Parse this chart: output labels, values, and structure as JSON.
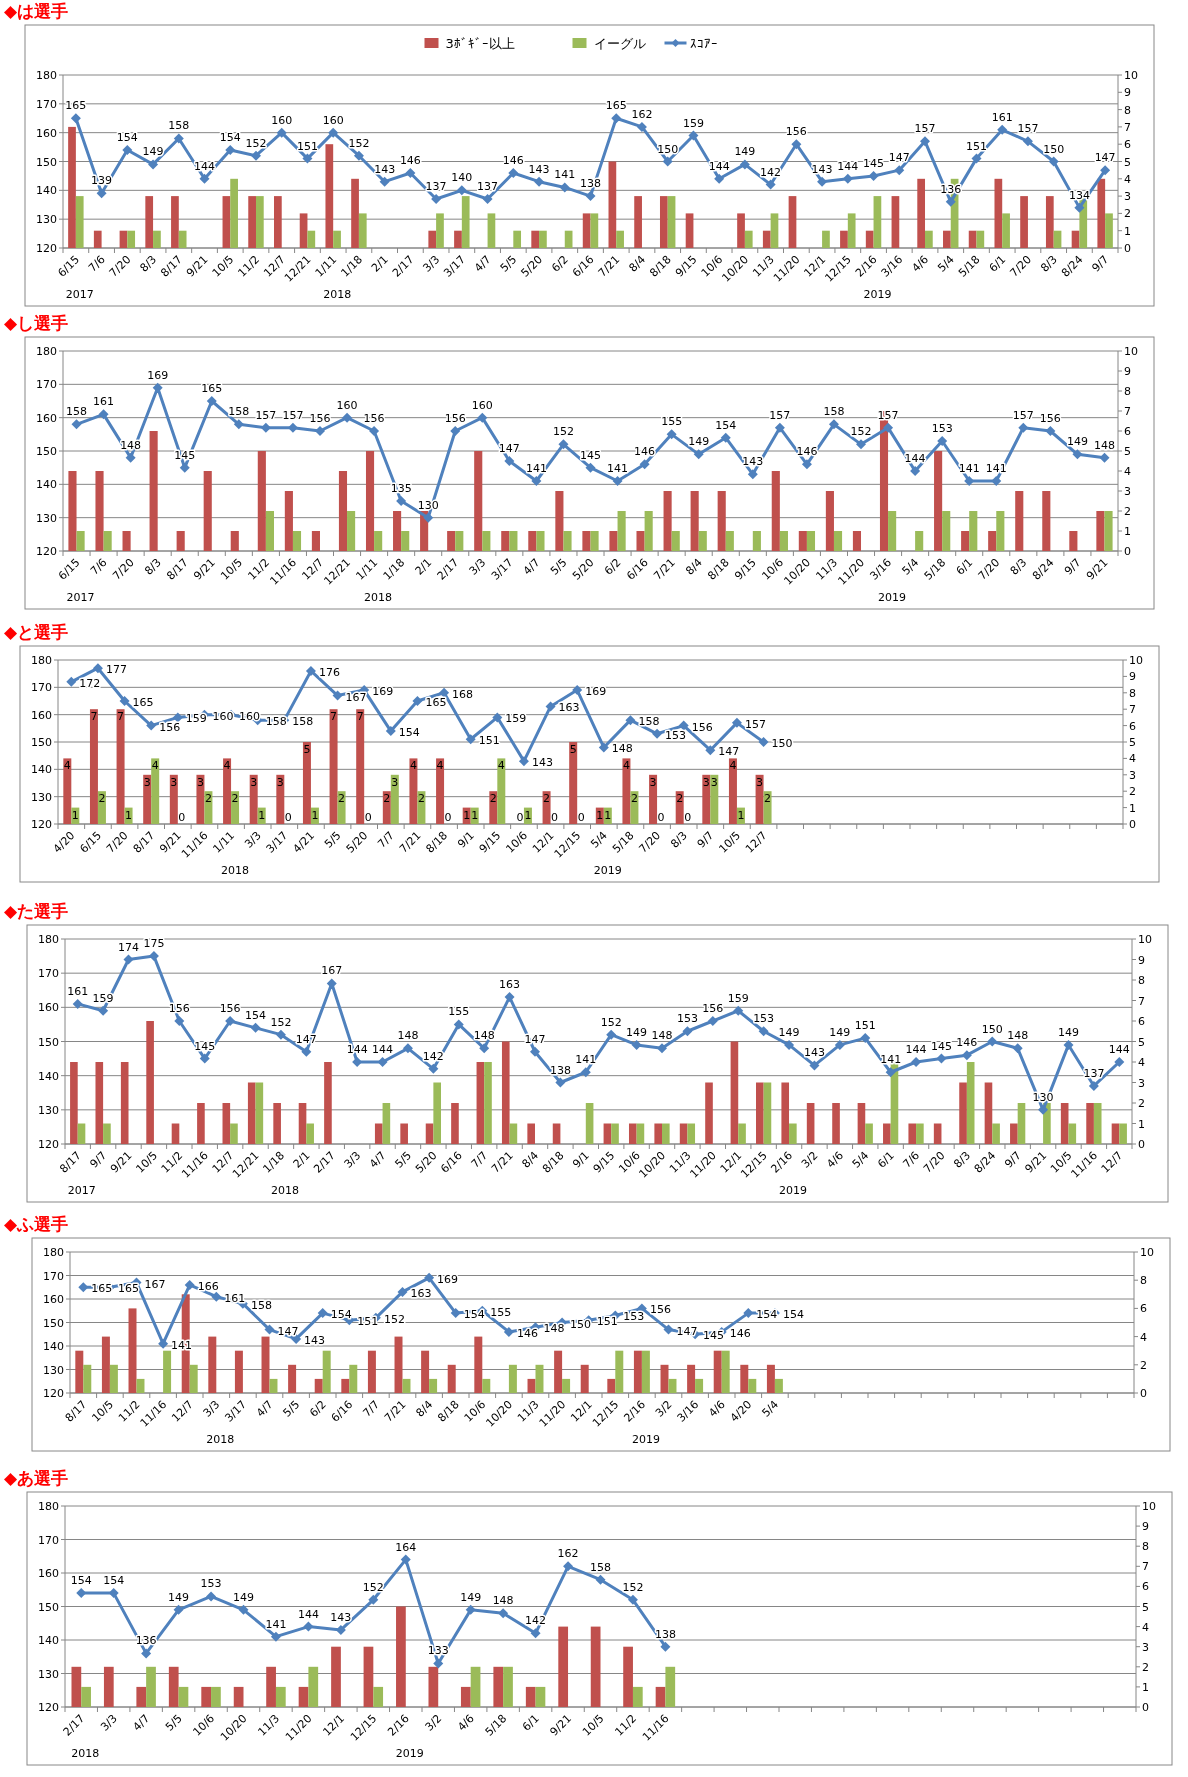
{
  "chart_data": [
    {
      "type": "bar",
      "title": "◆は選手",
      "legend": "top",
      "grid": "y",
      "ylim": [
        120,
        180
      ],
      "yticks": [
        120,
        130,
        140,
        150,
        160,
        170,
        180
      ],
      "y2lim": [
        0,
        10
      ],
      "y2ticks": [
        0,
        1,
        2,
        3,
        4,
        5,
        6,
        7,
        8,
        9,
        10
      ],
      "categories": [
        "6/15",
        "7/6",
        "7/20",
        "8/3",
        "8/17",
        "9/21",
        "10/5",
        "11/2",
        "12/7",
        "12/21",
        "1/11",
        "1/18",
        "2/1",
        "2/17",
        "3/3",
        "3/17",
        "4/7",
        "5/5",
        "5/20",
        "6/2",
        "6/16",
        "7/21",
        "8/4",
        "8/18",
        "9/15",
        "10/6",
        "10/20",
        "11/3",
        "11/20",
        "12/1",
        "12/15",
        "2/16",
        "3/16",
        "4/6",
        "5/4",
        "5/18",
        "6/1",
        "7/20",
        "8/3",
        "8/24",
        "9/7"
      ],
      "annotations": [
        "2017",
        "2018",
        "2019"
      ],
      "series": [
        {
          "name": "3ﾎﾞｷﾞｰ以上",
          "color": "#c0504d",
          "axis": "y2",
          "values": [
            7,
            1,
            1,
            3,
            3,
            null,
            3,
            3,
            3,
            2,
            6,
            4,
            null,
            null,
            1,
            1,
            null,
            null,
            1,
            null,
            2,
            5,
            3,
            3,
            2,
            null,
            2,
            1,
            3,
            null,
            1,
            1,
            3,
            4,
            1,
            1,
            4,
            3,
            3,
            1,
            4
          ]
        },
        {
          "name": "イーグル",
          "color": "#9bbb59",
          "axis": "y2",
          "values": [
            3,
            null,
            1,
            1,
            1,
            null,
            4,
            3,
            null,
            1,
            1,
            2,
            null,
            null,
            2,
            3,
            2,
            1,
            1,
            1,
            2,
            1,
            null,
            3,
            null,
            null,
            1,
            2,
            null,
            1,
            2,
            3,
            null,
            1,
            4,
            1,
            2,
            null,
            1,
            3,
            2
          ]
        },
        {
          "name": "ｽｺｱｰ",
          "type": "line",
          "color": "#4f81bd",
          "marker": "diamond",
          "values": [
            165,
            139,
            154,
            149,
            158,
            144,
            154,
            152,
            160,
            151,
            160,
            152,
            143,
            146,
            137,
            140,
            137,
            146,
            143,
            141,
            138,
            165,
            162,
            150,
            159,
            144,
            149,
            142,
            156,
            143,
            144,
            145,
            147,
            157,
            136,
            151,
            161,
            157,
            150,
            134,
            147
          ],
          "value_labels": [
            "165",
            "139",
            "154",
            "149",
            "158",
            "144",
            "154",
            "152",
            "160",
            "151",
            "160",
            "152",
            "143",
            "146",
            "137",
            "140",
            "137",
            "146",
            "143",
            "141",
            "138",
            "165",
            "162",
            "150",
            "159",
            "144",
            "149",
            "142",
            "156",
            "143",
            "144",
            "145",
            "147",
            "157",
            "136",
            "151",
            "161",
            "157",
            "150",
            "134",
            "147"
          ]
        }
      ]
    },
    {
      "type": "bar",
      "title": "◆し選手",
      "grid": "y",
      "ylim": [
        120,
        180
      ],
      "yticks": [
        120,
        130,
        140,
        150,
        160,
        170,
        180
      ],
      "y2lim": [
        0,
        10
      ],
      "y2ticks": [
        0,
        1,
        2,
        3,
        4,
        5,
        6,
        7,
        8,
        9,
        10
      ],
      "categories": [
        "6/15",
        "7/6",
        "7/20",
        "8/3",
        "8/17",
        "9/21",
        "10/5",
        "11/2",
        "11/16",
        "12/7",
        "12/21",
        "1/11",
        "1/18",
        "2/1",
        "2/17",
        "3/3",
        "3/17",
        "4/7",
        "5/5",
        "5/20",
        "6/2",
        "6/16",
        "7/21",
        "8/4",
        "8/18",
        "9/15",
        "10/6",
        "10/20",
        "11/3",
        "11/20",
        "3/16",
        "5/4",
        "5/18",
        "6/1",
        "7/20",
        "8/3",
        "8/24",
        "9/7",
        "9/21"
      ],
      "annotations": [
        "2017",
        "2018",
        "2019"
      ],
      "series": [
        {
          "color": "#c0504d",
          "axis": "y2",
          "values": [
            4,
            4,
            1,
            6,
            1,
            4,
            1,
            5,
            3,
            1,
            4,
            5,
            2,
            2,
            1,
            5,
            1,
            1,
            3,
            1,
            1,
            1,
            3,
            3,
            3,
            null,
            4,
            1,
            3,
            1,
            7,
            null,
            5,
            1,
            1,
            3,
            3,
            1,
            2
          ]
        },
        {
          "color": "#9bbb59",
          "axis": "y2",
          "values": [
            1,
            1,
            null,
            null,
            null,
            null,
            null,
            2,
            1,
            null,
            2,
            1,
            1,
            null,
            1,
            1,
            1,
            1,
            1,
            1,
            2,
            2,
            1,
            1,
            1,
            1,
            1,
            1,
            1,
            null,
            2,
            1,
            2,
            2,
            2,
            null,
            null,
            null,
            2
          ]
        },
        {
          "type": "line",
          "color": "#4f81bd",
          "marker": "diamond",
          "values": [
            158,
            161,
            148,
            169,
            145,
            165,
            158,
            157,
            157,
            156,
            160,
            156,
            135,
            130,
            156,
            160,
            147,
            141,
            152,
            145,
            141,
            146,
            155,
            149,
            154,
            143,
            157,
            146,
            158,
            152,
            157,
            144,
            153,
            141,
            141,
            157,
            156,
            149,
            148
          ],
          "value_labels": [
            "158",
            "161",
            "148",
            "169",
            "145",
            "165",
            "158",
            "157",
            "157",
            "156",
            "160",
            "156",
            "135",
            "130",
            "156",
            "160",
            "147",
            "141",
            "152",
            "145",
            "141",
            "146",
            "155",
            "149",
            "154",
            "143",
            "157",
            "146",
            "158",
            "152",
            "157",
            "144",
            "153",
            "141",
            "141",
            "157",
            "156",
            "149",
            "148"
          ]
        }
      ]
    },
    {
      "type": "bar",
      "title": "◆と選手",
      "grid": "y",
      "ylim": [
        120,
        180
      ],
      "yticks": [
        120,
        130,
        140,
        150,
        160,
        170,
        180
      ],
      "y2lim": [
        0,
        10
      ],
      "y2ticks": [
        0,
        1,
        2,
        3,
        4,
        5,
        6,
        7,
        8,
        9,
        10
      ],
      "categories": [
        "4/20",
        "6/15",
        "7/20",
        "8/17",
        "9/21",
        "11/16",
        "1/11",
        "3/3",
        "3/17",
        "4/21",
        "5/5",
        "5/20",
        "7/7",
        "7/21",
        "8/18",
        "9/1",
        "9/15",
        "10/6",
        "12/1",
        "12/15",
        "5/4",
        "5/18",
        "7/20",
        "8/3",
        "9/7",
        "10/5",
        "12/7",
        null,
        null,
        null,
        null,
        null,
        null,
        null,
        null,
        null,
        null,
        null,
        null,
        null
      ],
      "annotations": [
        "2018",
        "2019"
      ],
      "series": [
        {
          "color": "#c0504d",
          "axis": "y2",
          "values": [
            4,
            7,
            7,
            3,
            3,
            3,
            4,
            3,
            3,
            5,
            7,
            7,
            2,
            4,
            4,
            1,
            2,
            0,
            2,
            5,
            1,
            4,
            3,
            2,
            3,
            4,
            3,
            null,
            null,
            null,
            null,
            null,
            null,
            null,
            null,
            null,
            null,
            null,
            null,
            null
          ],
          "value_labels": [
            "4",
            "7",
            "7",
            "3",
            "3",
            "3",
            "4",
            "3",
            "3",
            "5",
            "7",
            "7",
            "2",
            "4",
            "4",
            "1",
            "2",
            "0",
            "2",
            "5",
            "1",
            "4",
            "3",
            "2",
            "3",
            "4",
            "3",
            null,
            null,
            null,
            null,
            null,
            null,
            null,
            null,
            null,
            null,
            null,
            null,
            null
          ]
        },
        {
          "color": "#9bbb59",
          "axis": "y2",
          "values": [
            1,
            2,
            1,
            4,
            0,
            2,
            2,
            1,
            0,
            1,
            2,
            0,
            3,
            2,
            0,
            1,
            4,
            1,
            0,
            0,
            1,
            2,
            0,
            0,
            3,
            1,
            2,
            null,
            null,
            null,
            null,
            null,
            null,
            null,
            null,
            null,
            null,
            null,
            null,
            null
          ],
          "value_labels": [
            "1",
            "2",
            "1",
            "4",
            "0",
            "2",
            "2",
            "1",
            "0",
            "1",
            "2",
            "0",
            "3",
            "2",
            "0",
            "1",
            "4",
            "1",
            "0",
            "0",
            "1",
            "2",
            "0",
            "0",
            "3",
            "1",
            "2",
            null,
            null,
            null,
            null,
            null,
            null,
            null,
            null,
            null,
            null,
            null,
            null,
            null
          ]
        },
        {
          "type": "line",
          "color": "#4f81bd",
          "marker": "diamond",
          "values": [
            172,
            177,
            165,
            156,
            159,
            160,
            160,
            158,
            158,
            176,
            167,
            169,
            154,
            165,
            168,
            151,
            159,
            143,
            163,
            169,
            148,
            158,
            153,
            156,
            147,
            157,
            150,
            null,
            null,
            null,
            null,
            null,
            null,
            null,
            null,
            null,
            null,
            null,
            null,
            null
          ],
          "value_labels": [
            "172",
            "177",
            "165",
            "156",
            "159",
            "160",
            "160",
            "158",
            "158",
            "176",
            "167",
            "169",
            "154",
            "165",
            "168",
            "151",
            "159",
            "143",
            "163",
            "169",
            "148",
            "158",
            "153",
            "156",
            "147",
            "157",
            "150",
            null,
            null,
            null,
            null,
            null,
            null,
            null,
            null,
            null,
            null,
            null,
            null,
            null
          ]
        }
      ]
    },
    {
      "type": "bar",
      "title": "◆た選手",
      "grid": "y",
      "ylim": [
        120,
        180
      ],
      "yticks": [
        120,
        130,
        140,
        150,
        160,
        170,
        180
      ],
      "y2lim": [
        0,
        10
      ],
      "y2ticks": [
        0,
        1,
        2,
        3,
        4,
        5,
        6,
        7,
        8,
        9,
        10
      ],
      "categories": [
        "8/17",
        "9/7",
        "9/21",
        "10/5",
        "11/2",
        "11/16",
        "12/7",
        "12/21",
        "1/18",
        "2/1",
        "2/17",
        "3/3",
        "4/7",
        "5/5",
        "5/20",
        "6/16",
        "7/7",
        "7/21",
        "8/4",
        "8/18",
        "9/1",
        "9/15",
        "10/6",
        "10/20",
        "11/3",
        "11/20",
        "12/1",
        "12/15",
        "2/16",
        "3/2",
        "4/6",
        "5/4",
        "6/1",
        "7/6",
        "7/20",
        "8/3",
        "8/24",
        "9/7",
        "9/21",
        "10/5",
        "11/16",
        "12/7"
      ],
      "annotations": [
        "2017",
        "2018",
        "2019"
      ],
      "series": [
        {
          "color": "#c0504d",
          "axis": "y2",
          "values": [
            4,
            4,
            4,
            6,
            1,
            2,
            2,
            3,
            2,
            2,
            4,
            null,
            1,
            1,
            1,
            2,
            4,
            5,
            1,
            1,
            null,
            1,
            1,
            1,
            1,
            3,
            5,
            3,
            3,
            2,
            2,
            2,
            1,
            1,
            1,
            3,
            3,
            1,
            null,
            2,
            2,
            1
          ]
        },
        {
          "color": "#9bbb59",
          "axis": "y2",
          "values": [
            1,
            1,
            null,
            null,
            null,
            null,
            1,
            3,
            null,
            1,
            null,
            null,
            2,
            null,
            3,
            null,
            4,
            1,
            null,
            null,
            2,
            1,
            1,
            1,
            1,
            null,
            1,
            3,
            1,
            null,
            null,
            1,
            4,
            1,
            null,
            4,
            1,
            2,
            2,
            1,
            2,
            1
          ]
        },
        {
          "type": "line",
          "color": "#4f81bd",
          "marker": "diamond",
          "values": [
            161,
            159,
            174,
            175,
            156,
            145,
            156,
            154,
            152,
            147,
            167,
            144,
            144,
            148,
            142,
            155,
            148,
            163,
            147,
            138,
            141,
            152,
            149,
            148,
            153,
            156,
            159,
            153,
            149,
            143,
            149,
            151,
            141,
            144,
            145,
            146,
            150,
            148,
            130,
            149,
            137,
            144
          ],
          "value_labels": [
            "161",
            "159",
            "174",
            "175",
            "156",
            "145",
            "156",
            "154",
            "152",
            "147",
            "167",
            "144",
            "144",
            "148",
            "142",
            "155",
            "148",
            "163",
            "147",
            "138",
            "141",
            "152",
            "149",
            "148",
            "153",
            "156",
            "159",
            "153",
            "149",
            "143",
            "149",
            "151",
            "141",
            "144",
            "145",
            "146",
            "150",
            "148",
            "130",
            "149",
            "137",
            "144"
          ]
        }
      ]
    },
    {
      "type": "bar",
      "title": "◆ふ選手",
      "grid": "y",
      "ylim": [
        120,
        180
      ],
      "yticks": [
        120,
        130,
        140,
        150,
        160,
        170,
        180
      ],
      "y2lim": [
        0,
        10
      ],
      "y2ticks": [
        0,
        2,
        4,
        6,
        8,
        10
      ],
      "categories": [
        "8/17",
        "10/5",
        "11/2",
        "11/16",
        "12/7",
        "3/3",
        "3/17",
        "4/7",
        "5/5",
        "6/2",
        "6/16",
        "7/7",
        "7/21",
        "8/4",
        "8/18",
        "10/6",
        "10/20",
        "11/3",
        "11/20",
        "12/1",
        "12/15",
        "2/16",
        "3/2",
        "3/16",
        "4/6",
        "4/20",
        "5/4",
        null,
        null,
        null,
        null,
        null,
        null,
        null,
        null,
        null,
        null,
        null,
        null,
        null
      ],
      "annotations": [
        "2018",
        "2019"
      ],
      "series": [
        {
          "color": "#c0504d",
          "axis": "y2",
          "values": [
            3,
            4,
            6,
            null,
            7,
            4,
            3,
            4,
            2,
            1,
            1,
            3,
            4,
            3,
            2,
            4,
            null,
            1,
            3,
            2,
            1,
            3,
            2,
            2,
            3,
            2,
            2,
            null,
            null,
            null,
            null,
            null,
            null,
            null,
            null,
            null,
            null,
            null,
            null,
            null
          ]
        },
        {
          "color": "#9bbb59",
          "axis": "y2",
          "values": [
            2,
            2,
            1,
            3,
            2,
            null,
            null,
            1,
            null,
            3,
            2,
            null,
            1,
            1,
            null,
            1,
            2,
            2,
            1,
            null,
            3,
            3,
            1,
            1,
            3,
            1,
            1,
            null,
            null,
            null,
            null,
            null,
            null,
            null,
            null,
            null,
            null,
            null,
            null,
            null
          ]
        },
        {
          "type": "line",
          "color": "#4f81bd",
          "marker": "diamond",
          "values": [
            165,
            165,
            167,
            141,
            166,
            161,
            158,
            147,
            143,
            154,
            151,
            152,
            163,
            169,
            154,
            155,
            146,
            148,
            150,
            151,
            153,
            156,
            147,
            145,
            146,
            154,
            154,
            null,
            null,
            null,
            null,
            null,
            null,
            null,
            null,
            null,
            null,
            null,
            null,
            null
          ],
          "value_labels": [
            "165",
            "165",
            "167",
            "141",
            "166",
            "161",
            "158",
            "147",
            "143",
            "154",
            "151",
            "152",
            "163",
            "169",
            "154",
            "155",
            "146",
            "148",
            "150",
            "151",
            "153",
            "156",
            "147",
            "145",
            "146",
            "154",
            "154",
            null,
            null,
            null,
            null,
            null,
            null,
            null,
            null,
            null,
            null,
            null,
            null,
            null
          ]
        }
      ]
    },
    {
      "type": "bar",
      "title": "◆あ選手",
      "grid": "y",
      "ylim": [
        120,
        180
      ],
      "yticks": [
        120,
        130,
        140,
        150,
        160,
        170,
        180
      ],
      "y2lim": [
        0,
        10
      ],
      "y2ticks": [
        0,
        1,
        2,
        3,
        4,
        5,
        6,
        7,
        8,
        9,
        10
      ],
      "categories": [
        "2/17",
        "3/3",
        "4/7",
        "5/5",
        "10/6",
        "10/20",
        "11/3",
        "11/20",
        "12/1",
        "12/15",
        "2/16",
        "3/2",
        "4/6",
        "5/18",
        "6/1",
        "9/21",
        "10/5",
        "11/2",
        "11/16",
        null,
        null,
        null,
        null,
        null,
        null,
        null,
        null,
        null,
        null,
        null,
        null,
        null,
        null
      ],
      "annotations": [
        "2018",
        "2019"
      ],
      "series": [
        {
          "color": "#c0504d",
          "axis": "y2",
          "values": [
            2,
            2,
            1,
            2,
            1,
            1,
            2,
            1,
            3,
            3,
            5,
            2,
            1,
            2,
            1,
            4,
            4,
            3,
            1,
            null,
            null,
            null,
            null,
            null,
            null,
            null,
            null,
            null,
            null,
            null,
            null,
            null,
            null
          ]
        },
        {
          "color": "#9bbb59",
          "axis": "y2",
          "values": [
            1,
            null,
            2,
            1,
            1,
            null,
            1,
            2,
            null,
            1,
            null,
            null,
            2,
            2,
            1,
            null,
            null,
            1,
            2,
            null,
            null,
            null,
            null,
            null,
            null,
            null,
            null,
            null,
            null,
            null,
            null,
            null,
            null
          ]
        },
        {
          "type": "line",
          "color": "#4f81bd",
          "marker": "diamond",
          "values": [
            154,
            154,
            136,
            149,
            153,
            149,
            141,
            144,
            143,
            152,
            164,
            133,
            149,
            148,
            142,
            162,
            158,
            152,
            138,
            null,
            null,
            null,
            null,
            null,
            null,
            null,
            null,
            null,
            null,
            null,
            null,
            null,
            null
          ],
          "value_labels": [
            "154",
            "154",
            "136",
            "149",
            "153",
            "149",
            "141",
            "144",
            "143",
            "152",
            "164",
            "133",
            "149",
            "148",
            "142",
            "162",
            "158",
            "152",
            "138",
            null,
            null,
            null,
            null,
            null,
            null,
            null,
            null,
            null,
            null,
            null,
            null,
            null,
            null
          ]
        }
      ]
    }
  ]
}
